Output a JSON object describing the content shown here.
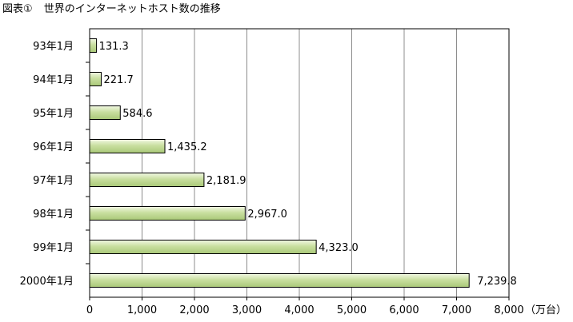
{
  "figure": {
    "label": "図表①",
    "title": "世界のインターネットホスト数の推移"
  },
  "chart_data": {
    "type": "bar",
    "orientation": "horizontal",
    "categories": [
      "93年1月",
      "94年1月",
      "95年1月",
      "96年1月",
      "97年1月",
      "98年1月",
      "99年1月",
      "2000年1月"
    ],
    "values": [
      131.3,
      221.7,
      584.6,
      1435.2,
      2181.9,
      2967.0,
      4323.0,
      7239.8
    ],
    "value_labels": [
      "131.3",
      "221.7",
      "584.6",
      "1,435.2",
      "2,181.9",
      "2,967.0",
      "4,323.0",
      "7,239.8"
    ],
    "xlim": [
      0,
      8000
    ],
    "x_ticks": [
      0,
      1000,
      2000,
      3000,
      4000,
      5000,
      6000,
      7000,
      8000
    ],
    "x_tick_labels": [
      "0",
      "1,000",
      "2,000",
      "3,000",
      "4,000",
      "5,000",
      "6,000",
      "7,000",
      "8,000"
    ],
    "unit_label": "（万台）",
    "grid": "vertical",
    "bar_color": "#c9dfa0",
    "bar_highlight": "#f2f8e4",
    "bar_outline": "#000000"
  }
}
